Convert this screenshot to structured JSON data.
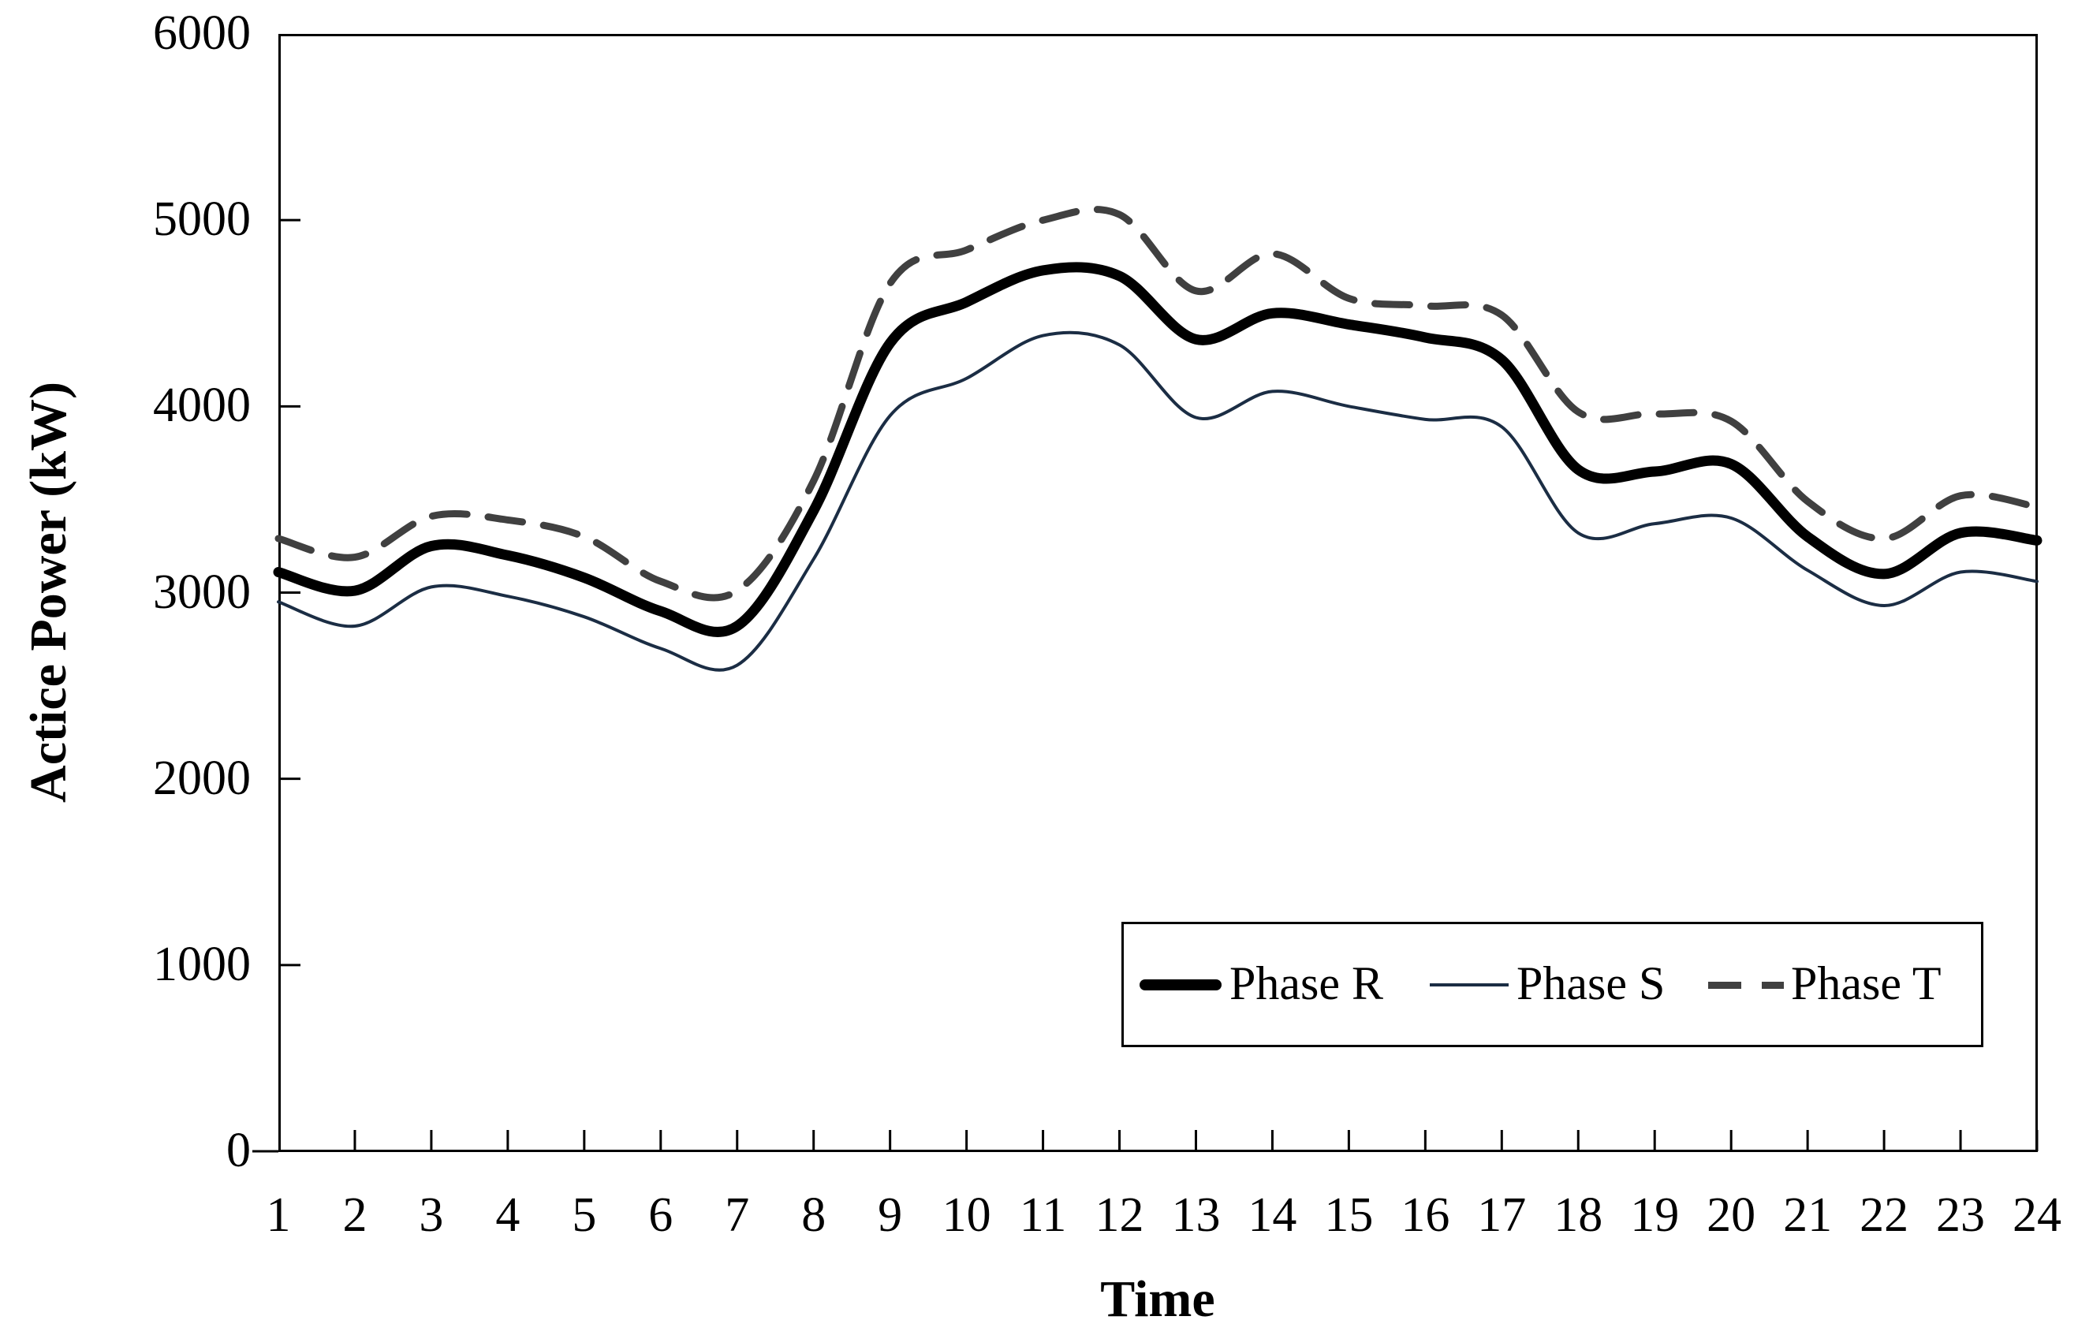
{
  "figure": {
    "x_axis_title": "Time",
    "y_axis_title": "Actice Power (kW)",
    "background_color": "#ffffff",
    "frame_color": "#000000"
  },
  "chart_data": {
    "type": "line",
    "title": "",
    "xlabel": "Time",
    "ylabel": "Actice Power (kW)",
    "grid": false,
    "smoothed": true,
    "legend_position": "inside-bottom-right",
    "xlim": [
      1,
      24
    ],
    "ylim": [
      0,
      6000
    ],
    "x": [
      1,
      2,
      3,
      4,
      5,
      6,
      7,
      8,
      9,
      10,
      11,
      12,
      13,
      14,
      15,
      16,
      17,
      18,
      19,
      20,
      21,
      22,
      23,
      24
    ],
    "x_tick_labels": [
      "1",
      "2",
      "3",
      "4",
      "5",
      "6",
      "7",
      "8",
      "9",
      "10",
      "11",
      "12",
      "13",
      "14",
      "15",
      "16",
      "17",
      "18",
      "19",
      "20",
      "21",
      "22",
      "23",
      "24"
    ],
    "y_tick_labels": [
      "0",
      "1000",
      "2000",
      "3000",
      "4000",
      "5000",
      "6000"
    ],
    "y_tick_values": [
      0,
      1000,
      2000,
      3000,
      4000,
      5000,
      6000
    ],
    "series": [
      {
        "name": "Phase R",
        "color": "#000000",
        "style": "solid",
        "stroke_width": 13,
        "values": [
          3110,
          3010,
          3250,
          3200,
          3080,
          2900,
          2820,
          3440,
          4340,
          4560,
          4730,
          4700,
          4360,
          4500,
          4440,
          4370,
          4250,
          3660,
          3650,
          3690,
          3300,
          3100,
          3320,
          3280
        ]
      },
      {
        "name": "Phase S",
        "color": "#1b2d44",
        "style": "solid",
        "stroke_width": 4,
        "values": [
          2950,
          2820,
          3030,
          2980,
          2870,
          2700,
          2610,
          3180,
          3950,
          4150,
          4380,
          4330,
          3940,
          4080,
          4000,
          3930,
          3890,
          3320,
          3370,
          3400,
          3120,
          2930,
          3110,
          3060
        ]
      },
      {
        "name": "Phase T",
        "color": "#404040",
        "style": "dashed",
        "dash_pattern": [
          44,
          27
        ],
        "stroke_width": 9,
        "values": [
          3290,
          3190,
          3410,
          3390,
          3300,
          3060,
          3010,
          3600,
          4660,
          4840,
          5000,
          5030,
          4620,
          4820,
          4580,
          4540,
          4490,
          3970,
          3960,
          3920,
          3490,
          3290,
          3520,
          3460
        ]
      }
    ]
  },
  "legend": {
    "items": [
      {
        "label": "Phase R"
      },
      {
        "label": "Phase S"
      },
      {
        "label": "Phase T"
      }
    ]
  }
}
